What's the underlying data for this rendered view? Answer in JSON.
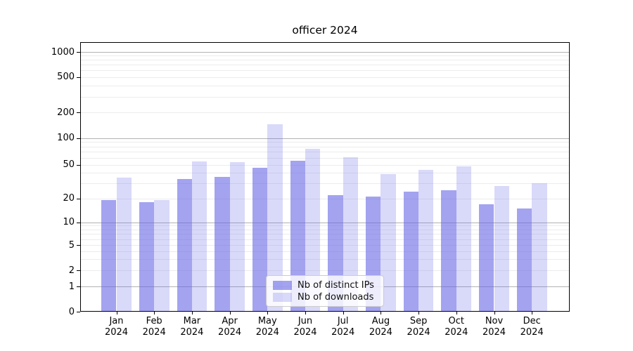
{
  "title": "officer 2024",
  "legend": {
    "items": [
      {
        "label": "Nb of distinct IPs"
      },
      {
        "label": "Nb of downloads"
      }
    ]
  },
  "chart_data": {
    "type": "bar",
    "title": "officer 2024",
    "categories": [
      "Jan 2024",
      "Feb 2024",
      "Mar 2024",
      "Apr 2024",
      "May 2024",
      "Jun 2024",
      "Jul 2024",
      "Aug 2024",
      "Sep 2024",
      "Oct 2024",
      "Nov 2024",
      "Dec 2024"
    ],
    "series": [
      {
        "name": "Nb of distinct IPs",
        "color": "#6666e6",
        "alpha": 0.6,
        "values": [
          19,
          18,
          34,
          36,
          46,
          55,
          22,
          21,
          24,
          25,
          17,
          15
        ]
      },
      {
        "name": "Nb of downloads",
        "color": "#6666e6",
        "alpha": 0.25,
        "values": [
          35,
          19,
          54,
          53,
          145,
          75,
          61,
          39,
          43,
          48,
          28,
          30
        ]
      }
    ],
    "yscale": "symlog",
    "y_ticks": [
      0,
      1,
      2,
      5,
      10,
      20,
      50,
      100,
      200,
      500,
      1000
    ],
    "ylim": [
      0,
      1300
    ],
    "grid": true,
    "legend_position": "lower center"
  }
}
